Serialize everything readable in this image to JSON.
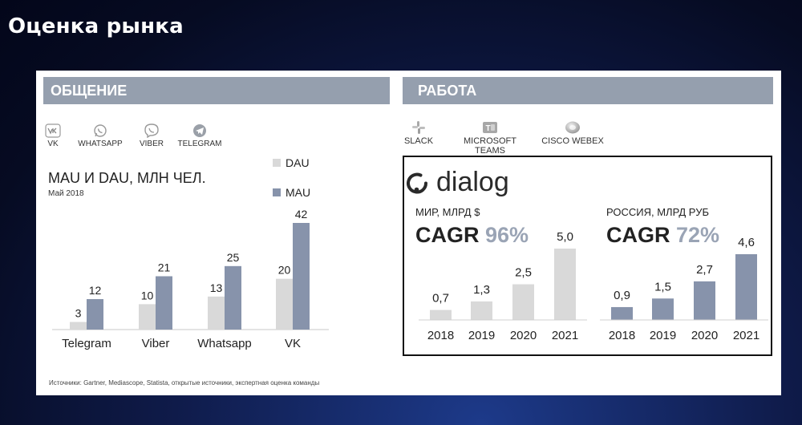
{
  "slide": {
    "title": "Оценка рынка"
  },
  "left": {
    "header": "ОБЩЕНИЕ",
    "apps": [
      {
        "label": "VK",
        "icon": "vk-icon"
      },
      {
        "label": "WHATSAPP",
        "icon": "whatsapp-icon"
      },
      {
        "label": "VIBER",
        "icon": "viber-icon"
      },
      {
        "label": "TELEGRAM",
        "icon": "telegram-icon"
      }
    ],
    "chart_title": "MAU И DAU, МЛН ЧЕЛ.",
    "chart_subtitle": "Май 2018",
    "source": "Источники: Gartner, Mediascope, Statista, открытые источники, экспертная оценка команды"
  },
  "right": {
    "header": "РАБОТА",
    "apps": [
      {
        "label": "SLACK",
        "icon": "slack-icon"
      },
      {
        "label": "MICROSOFT TEAMS",
        "icon": "microsoft-teams-icon"
      },
      {
        "label": "CISCO WEBEX",
        "icon": "cisco-webex-icon"
      }
    ],
    "brand": "dialog"
  },
  "colors": {
    "light": "#d9d9d9",
    "dark": "#8793ab",
    "header": "#959fae"
  },
  "chart_data": [
    {
      "type": "bar",
      "title": "MAU И DAU, МЛН ЧЕЛ.",
      "subtitle": "Май 2018",
      "categories": [
        "Telegram",
        "Viber",
        "Whatsapp",
        "VK"
      ],
      "series": [
        {
          "name": "DAU",
          "values": [
            3,
            10,
            13,
            20
          ],
          "labels": [
            "3",
            "10",
            "13",
            "20"
          ]
        },
        {
          "name": "MAU",
          "values": [
            12,
            21,
            25,
            42
          ],
          "labels": [
            "12",
            "21",
            "25",
            "42"
          ]
        }
      ],
      "ylim": [
        0,
        42
      ],
      "legend": "top-right"
    },
    {
      "type": "bar",
      "label": "МИР, МЛРД $",
      "cagr_prefix": "CAGR",
      "cagr_value": "96%",
      "categories": [
        "2018",
        "2019",
        "2020",
        "2021"
      ],
      "values": [
        0.7,
        1.3,
        2.5,
        5.0
      ],
      "labels": [
        "0,7",
        "1,3",
        "2,5",
        "5,0"
      ],
      "ylim": [
        0,
        5.0
      ]
    },
    {
      "type": "bar",
      "label": "РОССИЯ, МЛРД РУБ",
      "cagr_prefix": "CAGR",
      "cagr_value": "72%",
      "categories": [
        "2018",
        "2019",
        "2020",
        "2021"
      ],
      "values": [
        0.9,
        1.5,
        2.7,
        4.6
      ],
      "labels": [
        "0,9",
        "1,5",
        "2,7",
        "4,6"
      ],
      "ylim": [
        0,
        4.6
      ]
    }
  ]
}
